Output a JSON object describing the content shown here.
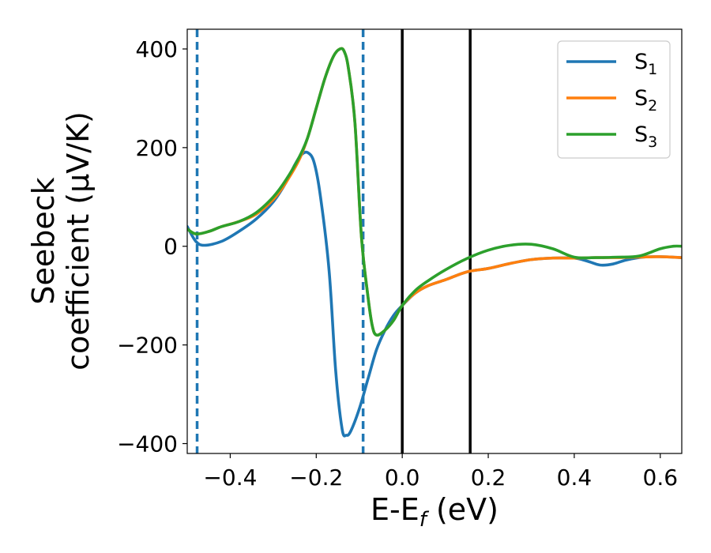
{
  "chart_data": {
    "type": "line",
    "xlabel": "E-E",
    "xlabel_sub": "f",
    "xlabel_unit": " (eV)",
    "ylabel_line1": "Seebeck",
    "ylabel_line2": "coefficient  (μV/K)",
    "xlim": [
      -0.5,
      0.65
    ],
    "ylim": [
      -420,
      440
    ],
    "xticks": [
      -0.4,
      -0.2,
      0.0,
      0.2,
      0.4,
      0.6
    ],
    "xtick_labels": [
      "−0.4",
      "−0.2",
      "0.0",
      "0.2",
      "0.4",
      "0.6"
    ],
    "yticks": [
      -400,
      -200,
      0,
      200,
      400
    ],
    "ytick_labels": [
      "−400",
      "−200",
      "0",
      "200",
      "400"
    ],
    "grid": false,
    "legend_position": "top-right",
    "vlines": [
      {
        "x": -0.477,
        "style": "dashed",
        "color": "#1f77b4"
      },
      {
        "x": -0.091,
        "style": "dashed",
        "color": "#1f77b4"
      },
      {
        "x": 0.0,
        "style": "solid",
        "color": "#000000"
      },
      {
        "x": 0.158,
        "style": "solid",
        "color": "#000000"
      }
    ],
    "series": [
      {
        "name": "S",
        "subscript": "1",
        "color": "#1f77b4",
        "points": [
          [
            -0.5,
            40
          ],
          [
            -0.48,
            10
          ],
          [
            -0.46,
            2
          ],
          [
            -0.42,
            10
          ],
          [
            -0.38,
            30
          ],
          [
            -0.34,
            55
          ],
          [
            -0.3,
            90
          ],
          [
            -0.27,
            130
          ],
          [
            -0.25,
            165
          ],
          [
            -0.235,
            185
          ],
          [
            -0.22,
            190
          ],
          [
            -0.205,
            170
          ],
          [
            -0.19,
            100
          ],
          [
            -0.17,
            -50
          ],
          [
            -0.155,
            -250
          ],
          [
            -0.14,
            -370
          ],
          [
            -0.13,
            -383
          ],
          [
            -0.12,
            -375
          ],
          [
            -0.1,
            -330
          ],
          [
            -0.08,
            -270
          ],
          [
            -0.06,
            -210
          ],
          [
            -0.04,
            -170
          ],
          [
            -0.02,
            -140
          ],
          [
            0.0,
            -120
          ],
          [
            0.03,
            -95
          ],
          [
            0.06,
            -80
          ],
          [
            0.1,
            -68
          ],
          [
            0.15,
            -52
          ],
          [
            0.2,
            -45
          ],
          [
            0.25,
            -35
          ],
          [
            0.3,
            -27
          ],
          [
            0.35,
            -24
          ],
          [
            0.4,
            -24
          ],
          [
            0.43,
            -30
          ],
          [
            0.46,
            -38
          ],
          [
            0.49,
            -36
          ],
          [
            0.52,
            -28
          ],
          [
            0.56,
            -22
          ],
          [
            0.6,
            -21
          ],
          [
            0.65,
            -23
          ]
        ]
      },
      {
        "name": "S",
        "subscript": "2",
        "color": "#ff7f0e",
        "points": [
          [
            -0.5,
            35
          ],
          [
            -0.48,
            25
          ],
          [
            -0.45,
            30
          ],
          [
            -0.42,
            40
          ],
          [
            -0.38,
            50
          ],
          [
            -0.34,
            65
          ],
          [
            -0.3,
            95
          ],
          [
            -0.27,
            130
          ],
          [
            -0.24,
            175
          ],
          [
            -0.22,
            220
          ],
          [
            -0.2,
            280
          ],
          [
            -0.18,
            340
          ],
          [
            -0.16,
            385
          ],
          [
            -0.145,
            400
          ],
          [
            -0.135,
            395
          ],
          [
            -0.125,
            360
          ],
          [
            -0.11,
            250
          ],
          [
            -0.095,
            20
          ],
          [
            -0.08,
            -100
          ],
          [
            -0.07,
            -160
          ],
          [
            -0.06,
            -180
          ],
          [
            -0.04,
            -170
          ],
          [
            -0.02,
            -150
          ],
          [
            0.0,
            -120
          ],
          [
            0.03,
            -95
          ],
          [
            0.06,
            -80
          ],
          [
            0.1,
            -68
          ],
          [
            0.15,
            -52
          ],
          [
            0.2,
            -45
          ],
          [
            0.25,
            -35
          ],
          [
            0.3,
            -27
          ],
          [
            0.35,
            -24
          ],
          [
            0.4,
            -24
          ],
          [
            0.45,
            -23
          ],
          [
            0.5,
            -23
          ],
          [
            0.55,
            -22
          ],
          [
            0.6,
            -21
          ],
          [
            0.65,
            -23
          ]
        ]
      },
      {
        "name": "S",
        "subscript": "3",
        "color": "#2ca02c",
        "points": [
          [
            -0.5,
            35
          ],
          [
            -0.48,
            25
          ],
          [
            -0.45,
            30
          ],
          [
            -0.42,
            40
          ],
          [
            -0.38,
            50
          ],
          [
            -0.34,
            68
          ],
          [
            -0.3,
            100
          ],
          [
            -0.27,
            135
          ],
          [
            -0.24,
            180
          ],
          [
            -0.22,
            220
          ],
          [
            -0.2,
            280
          ],
          [
            -0.18,
            340
          ],
          [
            -0.16,
            385
          ],
          [
            -0.145,
            400
          ],
          [
            -0.135,
            395
          ],
          [
            -0.125,
            360
          ],
          [
            -0.11,
            250
          ],
          [
            -0.095,
            20
          ],
          [
            -0.08,
            -100
          ],
          [
            -0.07,
            -160
          ],
          [
            -0.06,
            -180
          ],
          [
            -0.04,
            -170
          ],
          [
            -0.02,
            -150
          ],
          [
            0.0,
            -120
          ],
          [
            0.03,
            -90
          ],
          [
            0.06,
            -70
          ],
          [
            0.1,
            -48
          ],
          [
            0.15,
            -25
          ],
          [
            0.2,
            -8
          ],
          [
            0.25,
            2
          ],
          [
            0.3,
            4
          ],
          [
            0.35,
            -5
          ],
          [
            0.4,
            -22
          ],
          [
            0.45,
            -23
          ],
          [
            0.5,
            -22
          ],
          [
            0.55,
            -20
          ],
          [
            0.6,
            -5
          ],
          [
            0.63,
            0
          ],
          [
            0.65,
            0
          ]
        ]
      }
    ]
  }
}
